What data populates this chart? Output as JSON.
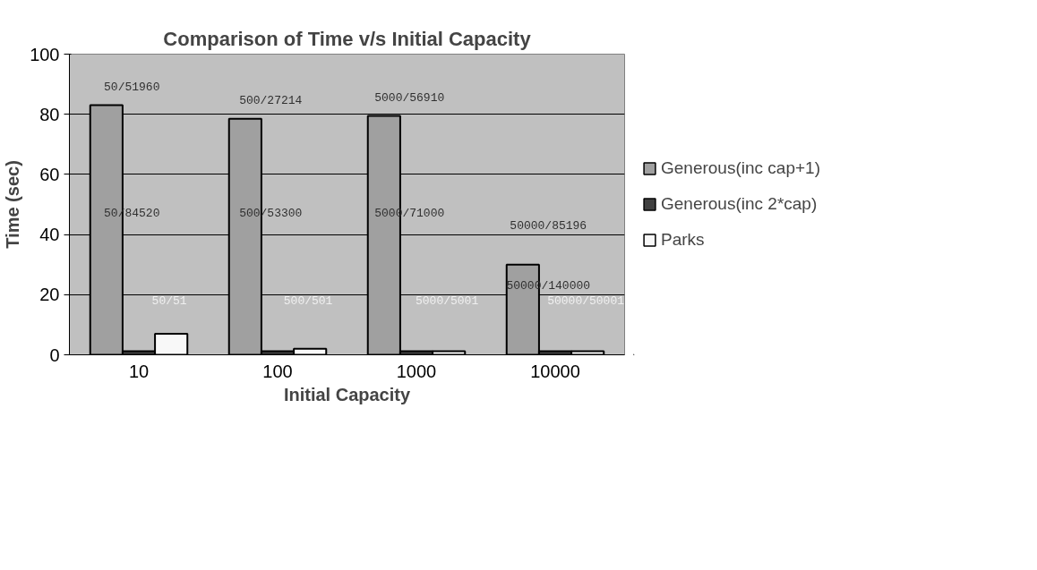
{
  "chart_data": {
    "type": "bar",
    "title": "Comparison of Time v/s Initial Capacity",
    "xlabel": "Initial Capacity",
    "ylabel": "Time (sec)",
    "categories": [
      "10",
      "100",
      "1000",
      "10000"
    ],
    "series": [
      {
        "name": "Generous(inc cap+1)",
        "color": "#a0a0a0",
        "values": [
          83,
          78.5,
          79.5,
          30
        ]
      },
      {
        "name": "Generous(inc 2*cap)",
        "color": "#404040",
        "values": [
          1.2,
          1.2,
          1.2,
          1.2
        ]
      },
      {
        "name": "Parks",
        "color": "#f8f8f8",
        "values": [
          7,
          2,
          1.2,
          1.2
        ]
      }
    ],
    "ylim": [
      0,
      100
    ],
    "yticks": [
      0,
      20,
      40,
      60,
      80,
      100
    ],
    "grid": "y",
    "legend": "right",
    "annotations": [
      "50/51960",
      "50/84520",
      "50/51",
      "500/27214",
      "500/53300",
      "500/501",
      "5000/56910",
      "5000/71000",
      "5000/5001",
      "50000/85196",
      "50000/140000",
      "50000/50001"
    ]
  }
}
